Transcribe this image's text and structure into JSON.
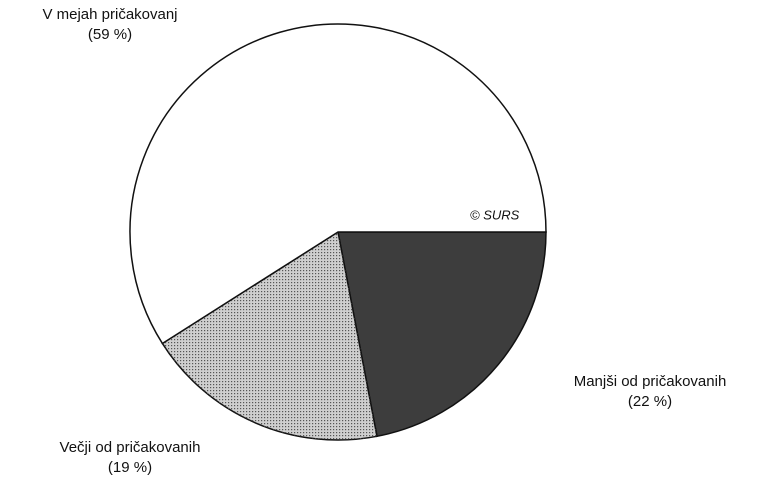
{
  "chart_data": {
    "type": "pie",
    "categories": [
      "Manjši od pričakovanih",
      "Večji od pričakovanih",
      "V mejah pričakovanj"
    ],
    "values": [
      22,
      19,
      59
    ],
    "value_labels": [
      "(22 %)",
      "(19 %)",
      "(59 %)"
    ],
    "colors": [
      "#3d3d3d",
      "#cfcfcf",
      "#ffffff"
    ],
    "annotation": "© SURS"
  }
}
